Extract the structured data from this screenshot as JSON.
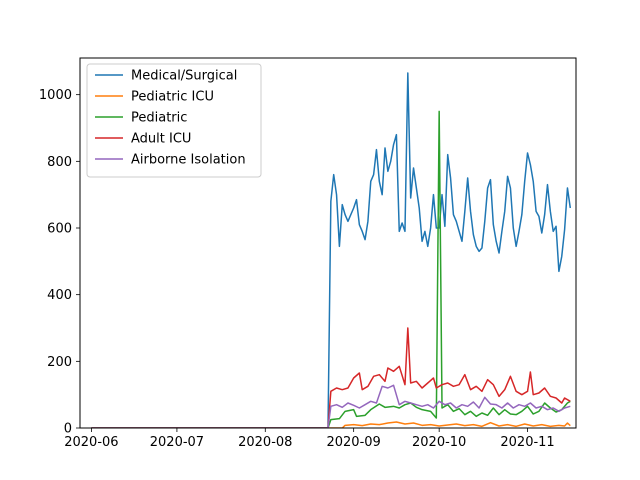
{
  "chart_data": {
    "type": "line",
    "title": "",
    "xlabel": "",
    "ylabel": "",
    "x_axis": {
      "kind": "date",
      "range": [
        "2020-05-28",
        "2020-11-18"
      ],
      "ticks": [
        {
          "date": "2020-06-01",
          "label": "2020-06"
        },
        {
          "date": "2020-07-01",
          "label": "2020-07"
        },
        {
          "date": "2020-08-01",
          "label": "2020-08"
        },
        {
          "date": "2020-09-01",
          "label": "2020-09"
        },
        {
          "date": "2020-10-01",
          "label": "2020-10"
        },
        {
          "date": "2020-11-01",
          "label": "2020-11"
        }
      ]
    },
    "y_axis": {
      "range": [
        0,
        1110
      ],
      "ticks": [
        {
          "value": 0,
          "label": "0"
        },
        {
          "value": 200,
          "label": "200"
        },
        {
          "value": 400,
          "label": "400"
        },
        {
          "value": 600,
          "label": "600"
        },
        {
          "value": 800,
          "label": "800"
        },
        {
          "value": 1000,
          "label": "1000"
        }
      ]
    },
    "grid": false,
    "legend_position": "top-left",
    "series": [
      {
        "name": "Medical/Surgical",
        "color": "#1f77b4",
        "points": [
          [
            "2020-06-01",
            0
          ],
          [
            "2020-08-23",
            0
          ],
          [
            "2020-08-24",
            680
          ],
          [
            "2020-08-25",
            760
          ],
          [
            "2020-08-26",
            700
          ],
          [
            "2020-08-27",
            545
          ],
          [
            "2020-08-28",
            670
          ],
          [
            "2020-08-29",
            640
          ],
          [
            "2020-08-30",
            620
          ],
          [
            "2020-09-01",
            660
          ],
          [
            "2020-09-02",
            685
          ],
          [
            "2020-09-03",
            610
          ],
          [
            "2020-09-04",
            590
          ],
          [
            "2020-09-05",
            565
          ],
          [
            "2020-09-06",
            620
          ],
          [
            "2020-09-07",
            740
          ],
          [
            "2020-09-08",
            760
          ],
          [
            "2020-09-09",
            835
          ],
          [
            "2020-09-10",
            740
          ],
          [
            "2020-09-11",
            700
          ],
          [
            "2020-09-12",
            840
          ],
          [
            "2020-09-13",
            770
          ],
          [
            "2020-09-14",
            800
          ],
          [
            "2020-09-15",
            850
          ],
          [
            "2020-09-16",
            880
          ],
          [
            "2020-09-17",
            590
          ],
          [
            "2020-09-18",
            615
          ],
          [
            "2020-09-19",
            590
          ],
          [
            "2020-09-20",
            1065
          ],
          [
            "2020-09-21",
            690
          ],
          [
            "2020-09-22",
            780
          ],
          [
            "2020-09-23",
            720
          ],
          [
            "2020-09-24",
            660
          ],
          [
            "2020-09-25",
            560
          ],
          [
            "2020-09-26",
            590
          ],
          [
            "2020-09-27",
            545
          ],
          [
            "2020-09-28",
            600
          ],
          [
            "2020-09-29",
            700
          ],
          [
            "2020-09-30",
            600
          ],
          [
            "2020-10-01",
            600
          ],
          [
            "2020-10-02",
            700
          ],
          [
            "2020-10-03",
            605
          ],
          [
            "2020-10-04",
            820
          ],
          [
            "2020-10-05",
            750
          ],
          [
            "2020-10-06",
            640
          ],
          [
            "2020-10-07",
            620
          ],
          [
            "2020-10-08",
            590
          ],
          [
            "2020-10-09",
            560
          ],
          [
            "2020-10-10",
            650
          ],
          [
            "2020-10-11",
            750
          ],
          [
            "2020-10-12",
            650
          ],
          [
            "2020-10-13",
            580
          ],
          [
            "2020-10-14",
            545
          ],
          [
            "2020-10-15",
            530
          ],
          [
            "2020-10-16",
            540
          ],
          [
            "2020-10-17",
            620
          ],
          [
            "2020-10-18",
            720
          ],
          [
            "2020-10-19",
            745
          ],
          [
            "2020-10-20",
            610
          ],
          [
            "2020-10-21",
            560
          ],
          [
            "2020-10-22",
            525
          ],
          [
            "2020-10-23",
            590
          ],
          [
            "2020-10-24",
            650
          ],
          [
            "2020-10-25",
            755
          ],
          [
            "2020-10-26",
            720
          ],
          [
            "2020-10-27",
            600
          ],
          [
            "2020-10-28",
            545
          ],
          [
            "2020-10-29",
            590
          ],
          [
            "2020-10-30",
            640
          ],
          [
            "2020-10-31",
            740
          ],
          [
            "2020-11-01",
            825
          ],
          [
            "2020-11-02",
            790
          ],
          [
            "2020-11-03",
            740
          ],
          [
            "2020-11-04",
            650
          ],
          [
            "2020-11-05",
            635
          ],
          [
            "2020-11-06",
            585
          ],
          [
            "2020-11-07",
            640
          ],
          [
            "2020-11-08",
            730
          ],
          [
            "2020-11-09",
            650
          ],
          [
            "2020-11-10",
            590
          ],
          [
            "2020-11-11",
            605
          ],
          [
            "2020-11-12",
            470
          ],
          [
            "2020-11-13",
            515
          ],
          [
            "2020-11-14",
            595
          ],
          [
            "2020-11-15",
            720
          ],
          [
            "2020-11-16",
            660
          ]
        ]
      },
      {
        "name": "Pediatric ICU",
        "color": "#ff7f0e",
        "points": [
          [
            "2020-06-01",
            0
          ],
          [
            "2020-08-28",
            0
          ],
          [
            "2020-08-29",
            8
          ],
          [
            "2020-09-01",
            10
          ],
          [
            "2020-09-04",
            7
          ],
          [
            "2020-09-07",
            12
          ],
          [
            "2020-09-10",
            10
          ],
          [
            "2020-09-13",
            15
          ],
          [
            "2020-09-16",
            18
          ],
          [
            "2020-09-19",
            12
          ],
          [
            "2020-09-22",
            15
          ],
          [
            "2020-09-25",
            8
          ],
          [
            "2020-09-28",
            10
          ],
          [
            "2020-10-01",
            6
          ],
          [
            "2020-10-04",
            9
          ],
          [
            "2020-10-07",
            12
          ],
          [
            "2020-10-10",
            7
          ],
          [
            "2020-10-13",
            10
          ],
          [
            "2020-10-16",
            5
          ],
          [
            "2020-10-19",
            16
          ],
          [
            "2020-10-22",
            6
          ],
          [
            "2020-10-25",
            10
          ],
          [
            "2020-10-28",
            5
          ],
          [
            "2020-10-31",
            12
          ],
          [
            "2020-11-03",
            6
          ],
          [
            "2020-11-06",
            10
          ],
          [
            "2020-11-09",
            5
          ],
          [
            "2020-11-12",
            8
          ],
          [
            "2020-11-14",
            6
          ],
          [
            "2020-11-15",
            15
          ],
          [
            "2020-11-16",
            7
          ]
        ]
      },
      {
        "name": "Pediatric",
        "color": "#2ca02c",
        "points": [
          [
            "2020-06-01",
            0
          ],
          [
            "2020-08-23",
            0
          ],
          [
            "2020-08-24",
            25
          ],
          [
            "2020-08-27",
            28
          ],
          [
            "2020-08-29",
            50
          ],
          [
            "2020-09-01",
            55
          ],
          [
            "2020-09-02",
            35
          ],
          [
            "2020-09-05",
            38
          ],
          [
            "2020-09-07",
            55
          ],
          [
            "2020-09-10",
            72
          ],
          [
            "2020-09-12",
            62
          ],
          [
            "2020-09-15",
            65
          ],
          [
            "2020-09-17",
            60
          ],
          [
            "2020-09-19",
            70
          ],
          [
            "2020-09-21",
            75
          ],
          [
            "2020-09-23",
            62
          ],
          [
            "2020-09-25",
            55
          ],
          [
            "2020-09-28",
            50
          ],
          [
            "2020-09-30",
            30
          ],
          [
            "2020-10-01",
            950
          ],
          [
            "2020-10-02",
            60
          ],
          [
            "2020-10-04",
            70
          ],
          [
            "2020-10-06",
            50
          ],
          [
            "2020-10-08",
            58
          ],
          [
            "2020-10-10",
            40
          ],
          [
            "2020-10-12",
            50
          ],
          [
            "2020-10-14",
            35
          ],
          [
            "2020-10-16",
            45
          ],
          [
            "2020-10-18",
            38
          ],
          [
            "2020-10-20",
            60
          ],
          [
            "2020-10-22",
            40
          ],
          [
            "2020-10-24",
            55
          ],
          [
            "2020-10-26",
            42
          ],
          [
            "2020-10-28",
            40
          ],
          [
            "2020-10-30",
            50
          ],
          [
            "2020-11-01",
            65
          ],
          [
            "2020-11-03",
            42
          ],
          [
            "2020-11-05",
            50
          ],
          [
            "2020-11-07",
            75
          ],
          [
            "2020-11-09",
            60
          ],
          [
            "2020-11-11",
            48
          ],
          [
            "2020-11-13",
            55
          ],
          [
            "2020-11-15",
            75
          ],
          [
            "2020-11-16",
            80
          ]
        ]
      },
      {
        "name": "Adult ICU",
        "color": "#d62728",
        "points": [
          [
            "2020-06-01",
            0
          ],
          [
            "2020-08-23",
            0
          ],
          [
            "2020-08-24",
            110
          ],
          [
            "2020-08-26",
            120
          ],
          [
            "2020-08-28",
            115
          ],
          [
            "2020-08-30",
            120
          ],
          [
            "2020-09-01",
            150
          ],
          [
            "2020-09-03",
            165
          ],
          [
            "2020-09-04",
            115
          ],
          [
            "2020-09-06",
            125
          ],
          [
            "2020-09-08",
            155
          ],
          [
            "2020-09-10",
            160
          ],
          [
            "2020-09-12",
            140
          ],
          [
            "2020-09-13",
            180
          ],
          [
            "2020-09-15",
            170
          ],
          [
            "2020-09-17",
            185
          ],
          [
            "2020-09-19",
            130
          ],
          [
            "2020-09-20",
            300
          ],
          [
            "2020-09-21",
            135
          ],
          [
            "2020-09-23",
            140
          ],
          [
            "2020-09-25",
            120
          ],
          [
            "2020-09-27",
            135
          ],
          [
            "2020-09-29",
            150
          ],
          [
            "2020-09-30",
            120
          ],
          [
            "2020-10-02",
            130
          ],
          [
            "2020-10-04",
            135
          ],
          [
            "2020-10-06",
            125
          ],
          [
            "2020-10-08",
            130
          ],
          [
            "2020-10-10",
            160
          ],
          [
            "2020-10-12",
            115
          ],
          [
            "2020-10-14",
            125
          ],
          [
            "2020-10-16",
            110
          ],
          [
            "2020-10-18",
            145
          ],
          [
            "2020-10-20",
            130
          ],
          [
            "2020-10-22",
            95
          ],
          [
            "2020-10-24",
            115
          ],
          [
            "2020-10-26",
            155
          ],
          [
            "2020-10-28",
            110
          ],
          [
            "2020-10-30",
            100
          ],
          [
            "2020-11-01",
            110
          ],
          [
            "2020-11-02",
            168
          ],
          [
            "2020-11-03",
            100
          ],
          [
            "2020-11-05",
            105
          ],
          [
            "2020-11-07",
            120
          ],
          [
            "2020-11-09",
            95
          ],
          [
            "2020-11-11",
            90
          ],
          [
            "2020-11-13",
            75
          ],
          [
            "2020-11-14",
            90
          ],
          [
            "2020-11-16",
            80
          ]
        ]
      },
      {
        "name": "Airborne Isolation",
        "color": "#9467bd",
        "points": [
          [
            "2020-06-01",
            0
          ],
          [
            "2020-08-23",
            0
          ],
          [
            "2020-08-24",
            65
          ],
          [
            "2020-08-26",
            70
          ],
          [
            "2020-08-28",
            62
          ],
          [
            "2020-08-30",
            75
          ],
          [
            "2020-09-01",
            68
          ],
          [
            "2020-09-03",
            60
          ],
          [
            "2020-09-05",
            70
          ],
          [
            "2020-09-07",
            80
          ],
          [
            "2020-09-09",
            75
          ],
          [
            "2020-09-11",
            125
          ],
          [
            "2020-09-13",
            120
          ],
          [
            "2020-09-15",
            128
          ],
          [
            "2020-09-17",
            70
          ],
          [
            "2020-09-19",
            80
          ],
          [
            "2020-09-21",
            75
          ],
          [
            "2020-09-23",
            70
          ],
          [
            "2020-09-25",
            65
          ],
          [
            "2020-09-27",
            70
          ],
          [
            "2020-09-29",
            60
          ],
          [
            "2020-10-01",
            80
          ],
          [
            "2020-10-03",
            70
          ],
          [
            "2020-10-05",
            75
          ],
          [
            "2020-10-07",
            60
          ],
          [
            "2020-10-09",
            70
          ],
          [
            "2020-10-11",
            65
          ],
          [
            "2020-10-13",
            78
          ],
          [
            "2020-10-15",
            60
          ],
          [
            "2020-10-17",
            92
          ],
          [
            "2020-10-19",
            72
          ],
          [
            "2020-10-21",
            70
          ],
          [
            "2020-10-23",
            60
          ],
          [
            "2020-10-25",
            75
          ],
          [
            "2020-10-27",
            60
          ],
          [
            "2020-10-29",
            70
          ],
          [
            "2020-10-31",
            65
          ],
          [
            "2020-11-02",
            75
          ],
          [
            "2020-11-04",
            60
          ],
          [
            "2020-11-06",
            65
          ],
          [
            "2020-11-08",
            55
          ],
          [
            "2020-11-10",
            60
          ],
          [
            "2020-11-12",
            50
          ],
          [
            "2020-11-14",
            60
          ],
          [
            "2020-11-16",
            65
          ]
        ]
      }
    ]
  }
}
